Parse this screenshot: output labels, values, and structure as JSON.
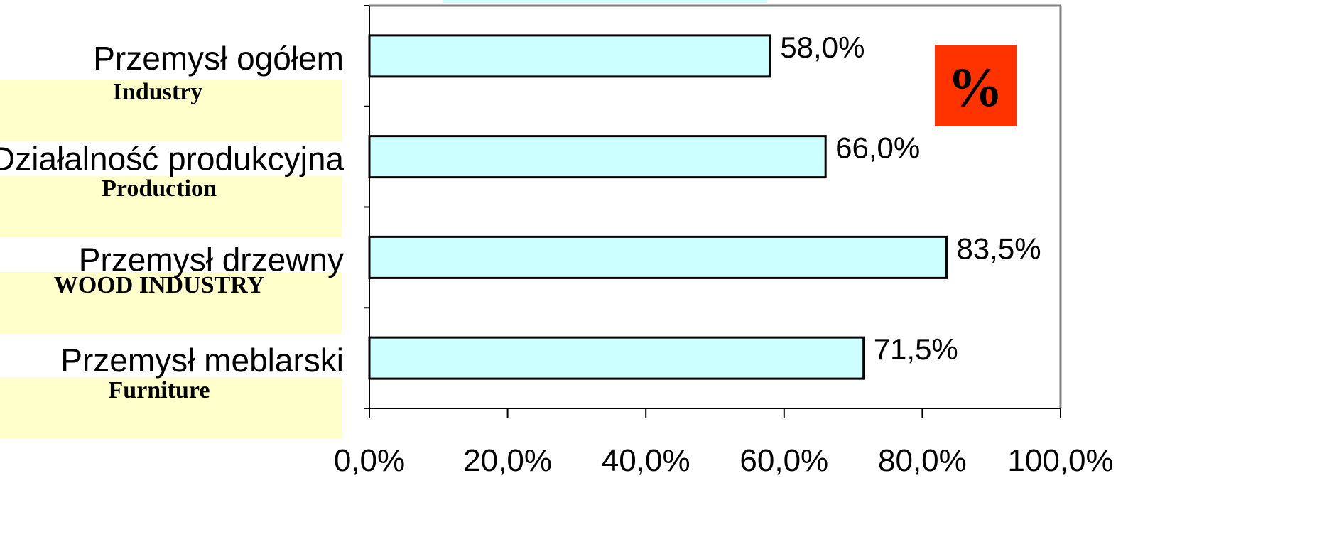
{
  "chart_data": {
    "type": "bar",
    "orientation": "horizontal",
    "categories": [
      "Przemysł ogółem",
      "Działalność produkcyjna",
      "Przemysł drzewny",
      "Przemysł meblarski"
    ],
    "category_translations": [
      "Industry",
      "Production",
      "WOOD INDUSTRY",
      "Furniture"
    ],
    "values": [
      58.0,
      66.0,
      83.5,
      71.5
    ],
    "value_labels": [
      "58,0%",
      "66,0%",
      "83,5%",
      "71,5%"
    ],
    "xlim": [
      0,
      100
    ],
    "x_ticks": [
      0,
      20,
      40,
      60,
      80,
      100
    ],
    "x_tick_labels": [
      "0,0%",
      "20,0%",
      "40,0%",
      "60,0%",
      "80,0%",
      "100,0%"
    ],
    "grid": false,
    "legend": "none",
    "annotation": "%"
  },
  "colors": {
    "bar_fill": "#ccffff",
    "bar_stroke": "#000000",
    "label_highlight": "#ffffcc",
    "badge_fill": "#ff3300",
    "badge_text": "#000000",
    "frame": "#808080",
    "axis": "#000000",
    "top_strip": "#ccffff"
  }
}
